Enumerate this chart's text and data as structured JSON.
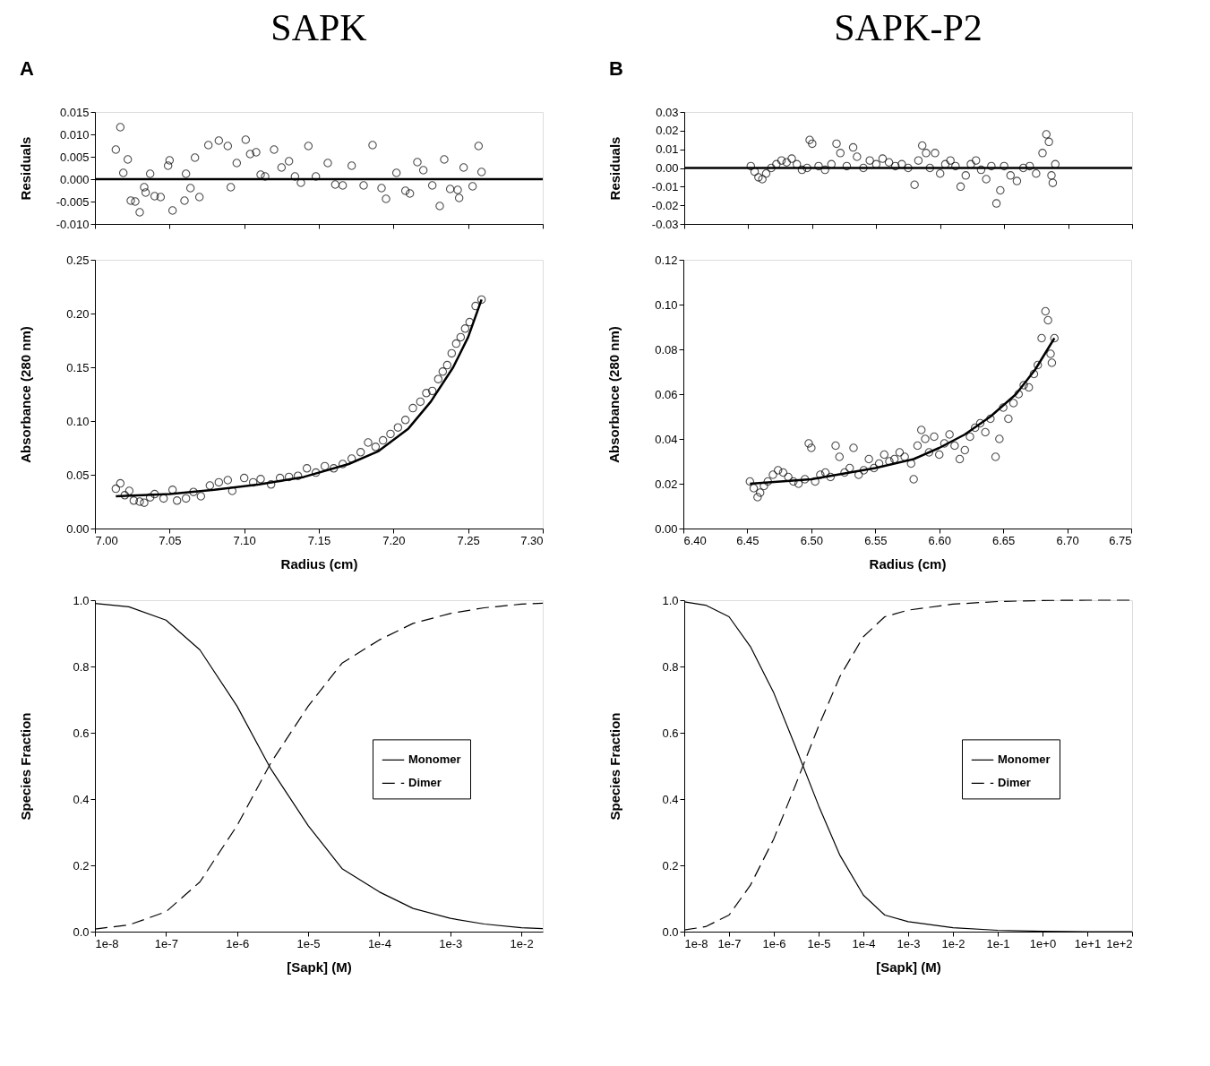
{
  "chart_data": [
    {
      "type": "scatter",
      "title": "SAPK",
      "annotations": [
        "A"
      ],
      "ylabel": "Residuals",
      "tick_labels": "y",
      "xlim": [
        7.0,
        7.3
      ],
      "xticks": [
        {
          "value": 7.0,
          "label": null
        },
        {
          "value": 7.05,
          "label": null
        },
        {
          "value": 7.1,
          "label": null
        },
        {
          "value": 7.15,
          "label": null
        },
        {
          "value": 7.2,
          "label": null
        },
        {
          "value": 7.25,
          "label": null
        },
        {
          "value": 7.3,
          "label": null
        }
      ],
      "ylim": [
        -0.01,
        0.015
      ],
      "yticks": [
        {
          "value": -0.01,
          "label": "-0.010"
        },
        {
          "value": -0.005,
          "label": "-0.005"
        },
        {
          "value": 0,
          "label": "0.000"
        },
        {
          "value": 0.005,
          "label": "0.005"
        },
        {
          "value": 0.01,
          "label": "0.010"
        },
        {
          "value": 0.015,
          "label": "0.015"
        }
      ],
      "ref_lines": [
        {
          "axis": "y",
          "value": 0,
          "color": "#000000"
        }
      ],
      "series": [
        {
          "type": "scatter",
          "marker": "circle",
          "color": "#000000",
          "x": [
            7.014,
            7.017,
            7.019,
            7.022,
            7.024,
            7.027,
            7.03,
            7.033,
            7.034,
            7.037,
            7.04,
            7.044,
            7.049,
            7.05,
            7.052,
            7.06,
            7.061,
            7.064,
            7.067,
            7.07,
            7.076,
            7.083,
            7.089,
            7.091,
            7.095,
            7.101,
            7.104,
            7.108,
            7.111,
            7.114,
            7.12,
            7.125,
            7.13,
            7.134,
            7.138,
            7.143,
            7.148,
            7.156,
            7.161,
            7.166,
            7.172,
            7.18,
            7.186,
            7.192,
            7.195,
            7.202,
            7.208,
            7.211,
            7.216,
            7.22,
            7.226,
            7.231,
            7.234,
            7.238,
            7.243,
            7.244,
            7.247,
            7.253,
            7.257,
            7.259
          ],
          "values": [
            0.0066,
            0.0116,
            0.0014,
            0.0044,
            -0.0048,
            -0.005,
            -0.0074,
            -0.0018,
            -0.003,
            0.0012,
            -0.0038,
            -0.004,
            0.003,
            0.0042,
            -0.007,
            -0.0048,
            0.0012,
            -0.002,
            0.0048,
            -0.004,
            0.0076,
            0.0086,
            0.0074,
            -0.0018,
            0.0036,
            0.0088,
            0.0056,
            0.006,
            0.001,
            0.0006,
            0.0066,
            0.0026,
            0.004,
            0.0006,
            -0.0008,
            0.0074,
            0.0006,
            0.0036,
            -0.0012,
            -0.0014,
            0.003,
            -0.0014,
            0.0076,
            -0.002,
            -0.0044,
            0.0014,
            -0.0026,
            -0.0032,
            0.0038,
            0.002,
            -0.0014,
            -0.006,
            0.0044,
            -0.0022,
            -0.0024,
            -0.0042,
            0.0026,
            -0.0016,
            0.0074,
            0.0016
          ]
        }
      ]
    },
    {
      "type": "scatter",
      "title": "SAPK-P2",
      "annotations": [
        "B"
      ],
      "ylabel": "Residuals",
      "tick_labels": "y",
      "xlim": [
        6.4,
        6.75
      ],
      "xticks": [
        {
          "value": 6.4,
          "label": null
        },
        {
          "value": 6.45,
          "label": null
        },
        {
          "value": 6.5,
          "label": null
        },
        {
          "value": 6.55,
          "label": null
        },
        {
          "value": 6.6,
          "label": null
        },
        {
          "value": 6.65,
          "label": null
        },
        {
          "value": 6.7,
          "label": null
        },
        {
          "value": 6.75,
          "label": null
        }
      ],
      "ylim": [
        -0.03,
        0.03
      ],
      "yticks": [
        {
          "value": -0.03,
          "label": "-0.03"
        },
        {
          "value": -0.02,
          "label": "-0.02"
        },
        {
          "value": -0.01,
          "label": "-0.01"
        },
        {
          "value": 0,
          "label": "0.00"
        },
        {
          "value": 0.01,
          "label": "0.01"
        },
        {
          "value": 0.02,
          "label": "0.02"
        },
        {
          "value": 0.03,
          "label": "0.03"
        }
      ],
      "ref_lines": [
        {
          "axis": "y",
          "value": 0,
          "color": "#000000"
        }
      ],
      "series": [
        {
          "type": "scatter",
          "marker": "circle",
          "color": "#000000",
          "x": [
            6.452,
            6.455,
            6.458,
            6.461,
            6.464,
            6.468,
            6.472,
            6.476,
            6.48,
            6.484,
            6.488,
            6.492,
            6.496,
            6.498,
            6.5,
            6.505,
            6.51,
            6.515,
            6.519,
            6.522,
            6.527,
            6.532,
            6.535,
            6.54,
            6.545,
            6.55,
            6.555,
            6.56,
            6.565,
            6.57,
            6.575,
            6.58,
            6.583,
            6.586,
            6.589,
            6.592,
            6.596,
            6.6,
            6.604,
            6.608,
            6.612,
            6.616,
            6.62,
            6.624,
            6.628,
            6.632,
            6.636,
            6.64,
            6.644,
            6.647,
            6.65,
            6.655,
            6.66,
            6.665,
            6.67,
            6.675,
            6.68,
            6.683,
            6.685,
            6.687,
            6.688,
            6.69
          ],
          "values": [
            0.001,
            -0.002,
            -0.005,
            -0.006,
            -0.003,
            0.0,
            0.002,
            0.004,
            0.003,
            0.005,
            0.002,
            -0.001,
            0.0,
            0.015,
            0.013,
            0.001,
            -0.001,
            0.002,
            0.013,
            0.008,
            0.001,
            0.011,
            0.006,
            0.0,
            0.004,
            0.002,
            0.005,
            0.003,
            0.001,
            0.002,
            0.0,
            -0.009,
            0.004,
            0.012,
            0.008,
            0.0,
            0.008,
            -0.003,
            0.002,
            0.004,
            0.001,
            -0.01,
            -0.004,
            0.002,
            0.004,
            -0.001,
            -0.006,
            0.001,
            -0.019,
            -0.012,
            0.001,
            -0.004,
            -0.007,
            0.0,
            0.001,
            -0.003,
            0.008,
            0.018,
            0.014,
            -0.004,
            -0.008,
            0.002
          ]
        }
      ]
    },
    {
      "type": "scatter",
      "xlabel": "Radius (cm)",
      "ylabel": "Absorbance (280 nm)",
      "xlim": [
        7.0,
        7.3
      ],
      "xticks": [
        {
          "value": 7.0,
          "label": "7.00"
        },
        {
          "value": 7.05,
          "label": "7.05"
        },
        {
          "value": 7.1,
          "label": "7.10"
        },
        {
          "value": 7.15,
          "label": "7.15"
        },
        {
          "value": 7.2,
          "label": "7.20"
        },
        {
          "value": 7.25,
          "label": "7.25"
        },
        {
          "value": 7.3,
          "label": "7.30"
        }
      ],
      "ylim": [
        0,
        0.25
      ],
      "yticks": [
        {
          "value": 0,
          "label": "0.00"
        },
        {
          "value": 0.05,
          "label": "0.05"
        },
        {
          "value": 0.1,
          "label": "0.10"
        },
        {
          "value": 0.15,
          "label": "0.15"
        },
        {
          "value": 0.2,
          "label": "0.20"
        },
        {
          "value": 0.25,
          "label": "0.25"
        }
      ],
      "series": [
        {
          "type": "scatter",
          "marker": "circle",
          "color": "#000000",
          "x": [
            7.014,
            7.017,
            7.02,
            7.023,
            7.026,
            7.03,
            7.033,
            7.037,
            7.04,
            7.046,
            7.052,
            7.055,
            7.061,
            7.066,
            7.071,
            7.077,
            7.083,
            7.089,
            7.092,
            7.1,
            7.106,
            7.111,
            7.118,
            7.124,
            7.13,
            7.136,
            7.142,
            7.148,
            7.154,
            7.16,
            7.166,
            7.172,
            7.178,
            7.183,
            7.188,
            7.193,
            7.198,
            7.203,
            7.208,
            7.213,
            7.218,
            7.222,
            7.226,
            7.23,
            7.233,
            7.236,
            7.239,
            7.242,
            7.245,
            7.248,
            7.251,
            7.255,
            7.259
          ],
          "values": [
            0.037,
            0.042,
            0.031,
            0.035,
            0.026,
            0.025,
            0.024,
            0.029,
            0.032,
            0.028,
            0.036,
            0.026,
            0.028,
            0.034,
            0.03,
            0.04,
            0.043,
            0.045,
            0.035,
            0.047,
            0.043,
            0.046,
            0.041,
            0.047,
            0.048,
            0.049,
            0.056,
            0.052,
            0.058,
            0.056,
            0.06,
            0.065,
            0.071,
            0.08,
            0.076,
            0.082,
            0.088,
            0.094,
            0.101,
            0.112,
            0.118,
            0.126,
            0.128,
            0.139,
            0.146,
            0.152,
            0.163,
            0.172,
            0.178,
            0.186,
            0.192,
            0.207,
            0.213
          ]
        },
        {
          "type": "line",
          "color": "#000000",
          "x": [
            7.014,
            7.05,
            7.08,
            7.11,
            7.14,
            7.17,
            7.19,
            7.21,
            7.225,
            7.24,
            7.25,
            7.259
          ],
          "values": [
            0.03,
            0.032,
            0.036,
            0.041,
            0.048,
            0.06,
            0.072,
            0.093,
            0.118,
            0.15,
            0.178,
            0.213
          ]
        }
      ]
    },
    {
      "type": "scatter",
      "xlabel": "Radius (cm)",
      "ylabel": "Absorbance (280 nm)",
      "xlim": [
        6.4,
        6.75
      ],
      "xticks": [
        {
          "value": 6.4,
          "label": "6.40"
        },
        {
          "value": 6.45,
          "label": "6.45"
        },
        {
          "value": 6.5,
          "label": "6.50"
        },
        {
          "value": 6.55,
          "label": "6.55"
        },
        {
          "value": 6.6,
          "label": "6.60"
        },
        {
          "value": 6.65,
          "label": "6.65"
        },
        {
          "value": 6.7,
          "label": "6.70"
        },
        {
          "value": 6.75,
          "label": "6.75"
        }
      ],
      "ylim": [
        0,
        0.12
      ],
      "yticks": [
        {
          "value": 0,
          "label": "0.00"
        },
        {
          "value": 0.02,
          "label": "0.02"
        },
        {
          "value": 0.04,
          "label": "0.04"
        },
        {
          "value": 0.06,
          "label": "0.06"
        },
        {
          "value": 0.08,
          "label": "0.08"
        },
        {
          "value": 0.1,
          "label": "0.10"
        },
        {
          "value": 0.12,
          "label": "0.12"
        }
      ],
      "series": [
        {
          "type": "scatter",
          "marker": "circle",
          "color": "#000000",
          "x": [
            6.452,
            6.455,
            6.458,
            6.46,
            6.463,
            6.466,
            6.47,
            6.474,
            6.478,
            6.482,
            6.486,
            6.49,
            6.495,
            6.498,
            6.5,
            6.503,
            6.507,
            6.511,
            6.515,
            6.519,
            6.522,
            6.526,
            6.53,
            6.533,
            6.537,
            6.541,
            6.545,
            6.549,
            6.553,
            6.557,
            6.561,
            6.565,
            6.569,
            6.573,
            6.578,
            6.58,
            6.583,
            6.586,
            6.589,
            6.592,
            6.596,
            6.6,
            6.604,
            6.608,
            6.612,
            6.616,
            6.62,
            6.624,
            6.628,
            6.632,
            6.636,
            6.64,
            6.644,
            6.647,
            6.65,
            6.654,
            6.658,
            6.662,
            6.666,
            6.67,
            6.674,
            6.677,
            6.68,
            6.683,
            6.685,
            6.687,
            6.688,
            6.69
          ],
          "values": [
            0.021,
            0.018,
            0.014,
            0.016,
            0.019,
            0.021,
            0.024,
            0.026,
            0.025,
            0.023,
            0.021,
            0.02,
            0.022,
            0.038,
            0.036,
            0.021,
            0.024,
            0.025,
            0.023,
            0.037,
            0.032,
            0.025,
            0.027,
            0.036,
            0.024,
            0.026,
            0.031,
            0.027,
            0.029,
            0.033,
            0.03,
            0.031,
            0.034,
            0.032,
            0.029,
            0.022,
            0.037,
            0.044,
            0.04,
            0.034,
            0.041,
            0.033,
            0.038,
            0.042,
            0.037,
            0.031,
            0.035,
            0.041,
            0.045,
            0.047,
            0.043,
            0.049,
            0.032,
            0.04,
            0.054,
            0.049,
            0.056,
            0.06,
            0.064,
            0.063,
            0.069,
            0.073,
            0.085,
            0.097,
            0.093,
            0.078,
            0.074,
            0.085
          ]
        },
        {
          "type": "line",
          "color": "#000000",
          "x": [
            6.452,
            6.5,
            6.55,
            6.58,
            6.6,
            6.62,
            6.64,
            6.66,
            6.675,
            6.69
          ],
          "values": [
            0.02,
            0.022,
            0.027,
            0.031,
            0.036,
            0.042,
            0.05,
            0.06,
            0.071,
            0.085
          ]
        }
      ]
    },
    {
      "type": "line",
      "xlabel": "[Sapk] (M)",
      "ylabel": "Species Fraction",
      "log": "x",
      "legend": "right",
      "xlim": [
        1e-08,
        0.02
      ],
      "xticks": [
        {
          "value": 1e-08,
          "label": "1e-8"
        },
        {
          "value": 1e-07,
          "label": "1e-7"
        },
        {
          "value": 1e-06,
          "label": "1e-6"
        },
        {
          "value": 1e-05,
          "label": "1e-5"
        },
        {
          "value": 0.0001,
          "label": "1e-4"
        },
        {
          "value": 0.001,
          "label": "1e-3"
        },
        {
          "value": 0.01,
          "label": "1e-2"
        }
      ],
      "ylim": [
        0,
        1
      ],
      "yticks": [
        {
          "value": 0,
          "label": "0.0"
        },
        {
          "value": 0.2,
          "label": "0.2"
        },
        {
          "value": 0.4,
          "label": "0.4"
        },
        {
          "value": 0.6,
          "label": "0.6"
        },
        {
          "value": 0.8,
          "label": "0.8"
        },
        {
          "value": 1,
          "label": "1.0"
        }
      ],
      "x": [
        1e-08,
        3e-08,
        1e-07,
        3e-07,
        1e-06,
        3e-06,
        1e-05,
        3e-05,
        0.0001,
        0.0003,
        0.001,
        0.003,
        0.01,
        0.02
      ],
      "series": [
        {
          "name": "Monomer",
          "color": "#000000",
          "line_style": "solid",
          "values": [
            0.99,
            0.98,
            0.94,
            0.85,
            0.68,
            0.49,
            0.32,
            0.19,
            0.12,
            0.07,
            0.04,
            0.023,
            0.012,
            0.009
          ]
        },
        {
          "name": "Dimer",
          "color": "#000000",
          "line_style": "dashed",
          "values": [
            0.008,
            0.02,
            0.06,
            0.15,
            0.32,
            0.51,
            0.68,
            0.81,
            0.88,
            0.93,
            0.96,
            0.977,
            0.988,
            0.991
          ]
        }
      ]
    },
    {
      "type": "line",
      "xlabel": "[Sapk] (M)",
      "ylabel": "Species Fraction",
      "log": "x",
      "legend": "right",
      "xlim": [
        1e-08,
        100
      ],
      "xticks": [
        {
          "value": 1e-08,
          "label": "1e-8"
        },
        {
          "value": 1e-07,
          "label": "1e-7"
        },
        {
          "value": 1e-06,
          "label": "1e-6"
        },
        {
          "value": 1e-05,
          "label": "1e-5"
        },
        {
          "value": 0.0001,
          "label": "1e-4"
        },
        {
          "value": 0.001,
          "label": "1e-3"
        },
        {
          "value": 0.01,
          "label": "1e-2"
        },
        {
          "value": 0.1,
          "label": "1e-1"
        },
        {
          "value": 1,
          "label": "1e+0"
        },
        {
          "value": 10,
          "label": "1e+1"
        },
        {
          "value": 100,
          "label": "1e+2"
        }
      ],
      "ylim": [
        0,
        1
      ],
      "yticks": [
        {
          "value": 0,
          "label": "0.0"
        },
        {
          "value": 0.2,
          "label": "0.2"
        },
        {
          "value": 0.4,
          "label": "0.4"
        },
        {
          "value": 0.6,
          "label": "0.6"
        },
        {
          "value": 0.8,
          "label": "0.8"
        },
        {
          "value": 1,
          "label": "1.0"
        }
      ],
      "x": [
        1e-08,
        3e-08,
        1e-07,
        3e-07,
        1e-06,
        3e-06,
        1e-05,
        3e-05,
        0.0001,
        0.0003,
        0.001,
        0.01,
        0.1,
        1,
        10,
        100
      ],
      "series": [
        {
          "name": "Monomer",
          "color": "#000000",
          "line_style": "solid",
          "values": [
            0.995,
            0.985,
            0.95,
            0.86,
            0.72,
            0.56,
            0.38,
            0.23,
            0.11,
            0.05,
            0.03,
            0.012,
            0.004,
            0.001,
            0.0,
            0.0
          ]
        },
        {
          "name": "Dimer",
          "color": "#000000",
          "line_style": "dashed",
          "values": [
            0.005,
            0.015,
            0.05,
            0.14,
            0.28,
            0.44,
            0.62,
            0.77,
            0.89,
            0.95,
            0.97,
            0.988,
            0.996,
            0.999,
            1.0,
            1.0
          ]
        }
      ]
    }
  ]
}
